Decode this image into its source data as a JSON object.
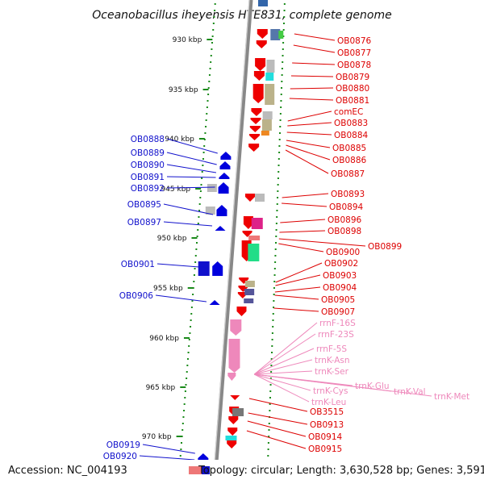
{
  "title": "Oceanobacillus iheyensis HTE831, complete genome",
  "footer": {
    "accession": "Accession: NC_004193",
    "topology": "Topology: circular; Length: 3,630,528 bp; Genes: 3,591"
  },
  "colors": {
    "backbone": "#888888",
    "tick": "#1a8a1a",
    "forward_label": "#dd0000",
    "reverse_label": "#1111cc",
    "rna_label": "#ee88bb"
  },
  "ticks": [
    "930 kbp",
    "935 kbp",
    "940 kbp",
    "945 kbp",
    "950 kbp",
    "955 kbp",
    "960 kbp",
    "965 kbp",
    "970 kbp"
  ],
  "forward_genes": [
    "OB0876",
    "OB0877",
    "OB0878",
    "OB0879",
    "OB0880",
    "OB0881",
    "comEC",
    "OB0883",
    "OB0884",
    "OB0885",
    "OB0886",
    "OB0887",
    "OB0893",
    "OB0894",
    "OB0896",
    "OB0898",
    "OB0899",
    "OB0900",
    "OB0902",
    "OB0903",
    "OB0904",
    "OB0905",
    "OB0907"
  ],
  "rna_genes": [
    "rrnF-16S",
    "rrnF-23S",
    "rrnF-5S",
    "trnK-Asn",
    "trnK-Ser",
    "trnK-Glu",
    "trnK-Val",
    "trnK-Met",
    "trnK-Cys",
    "trnK-Leu"
  ],
  "forward_genes_lower": [
    "OB3515",
    "OB0913",
    "OB0914",
    "OB0915"
  ],
  "reverse_genes": [
    "OB0888",
    "OB0889",
    "OB0890",
    "OB0891",
    "OB0892",
    "OB0895",
    "OB0897",
    "OB0901",
    "OB0906",
    "OB0919",
    "OB0920"
  ]
}
